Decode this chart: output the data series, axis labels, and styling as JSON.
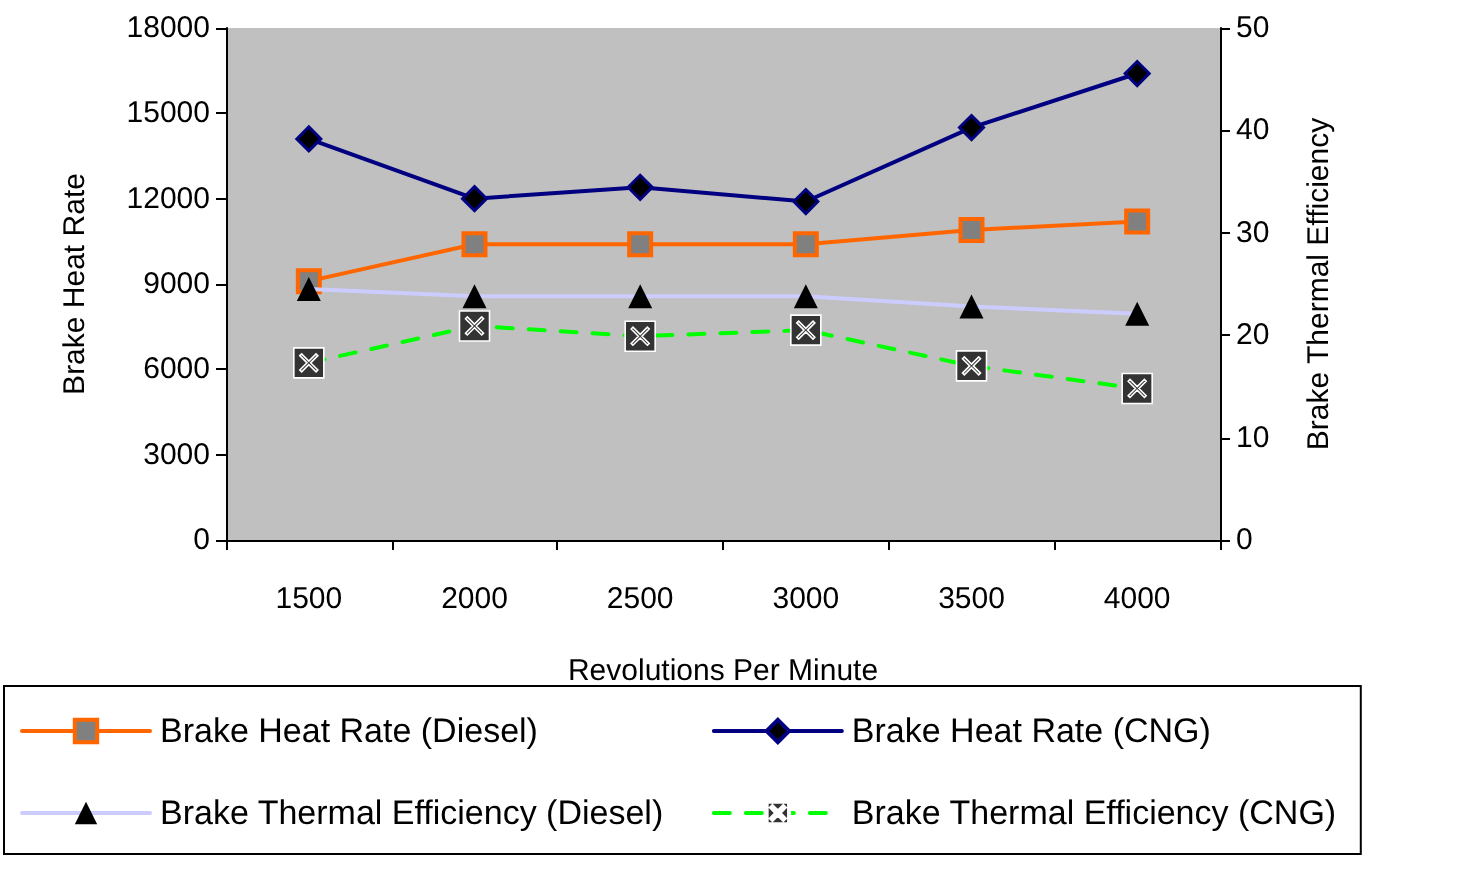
{
  "chart_data": {
    "type": "line",
    "xlabel": "Revolutions Per Minute",
    "ylabel": "Brake Heat Rate",
    "y2label": "Brake Thermal Efficiency",
    "categories": [
      "1500",
      "2000",
      "2500",
      "3000",
      "3500",
      "4000"
    ],
    "series": [
      {
        "name": "Brake Heat Rate (Diesel)",
        "color": "#ff6600",
        "marker": "square",
        "line_style": "solid",
        "values": [
          9100,
          10400,
          10400,
          10400,
          10900,
          11200
        ]
      },
      {
        "name": "Brake Heat Rate (CNG)",
        "color": "#000080",
        "marker": "diamond",
        "line_style": "solid",
        "values": [
          14100,
          12000,
          12400,
          11900,
          14500,
          16400
        ]
      },
      {
        "name": "Brake Thermal Efficiency (Diesel)",
        "color": "#ccccff",
        "marker": "triangle",
        "line_style": "solid",
        "axis": "y2",
        "values": [
          24.5,
          23.8,
          23.8,
          23.8,
          22.8,
          22.1
        ]
      },
      {
        "name": "Brake Thermal Efficiency (CNG)",
        "color": "#00ff00",
        "marker": "cross",
        "line_style": "dashed",
        "axis": "y2",
        "values": [
          17.3,
          20.9,
          19.9,
          20.5,
          17.0,
          14.8
        ]
      }
    ],
    "ylim": [
      0,
      18000
    ],
    "yticks": [
      0,
      3000,
      6000,
      9000,
      12000,
      15000,
      18000
    ],
    "y2lim": [
      0,
      50
    ],
    "y2ticks": [
      0,
      10,
      20,
      30,
      40,
      50
    ],
    "grid": false,
    "legend": "bottom"
  }
}
